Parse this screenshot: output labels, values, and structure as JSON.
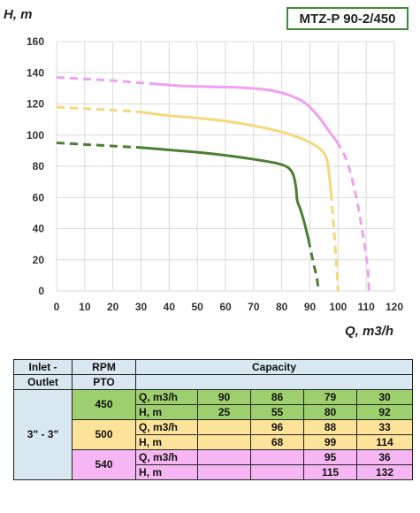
{
  "model": "MTZ-P 90-2/450",
  "chart_data": {
    "type": "line",
    "ylabel": "H, m",
    "xlabel": "Q, m3/h",
    "xlim": [
      0,
      120
    ],
    "ylim": [
      0,
      160
    ],
    "xticks": [
      "0",
      "10",
      "20",
      "30",
      "40",
      "50",
      "60",
      "70",
      "80",
      "90",
      "100",
      "110",
      "120"
    ],
    "yticks": [
      "0",
      "20",
      "40",
      "60",
      "80",
      "100",
      "120",
      "140",
      "160"
    ],
    "grid": true,
    "series": [
      {
        "rpm": "450",
        "color": "#4a7f34",
        "dashed_start": [
          [
            0,
            95
          ],
          [
            10,
            94
          ],
          [
            20,
            93
          ],
          [
            30,
            92
          ]
        ],
        "solid": [
          [
            30,
            92
          ],
          [
            40,
            90.5
          ],
          [
            50,
            89
          ],
          [
            60,
            87
          ],
          [
            70,
            84.5
          ],
          [
            78,
            82
          ],
          [
            82,
            79.5
          ],
          [
            84,
            75
          ],
          [
            85,
            67
          ],
          [
            85.5,
            58
          ],
          [
            86.5,
            53
          ],
          [
            88,
            44
          ],
          [
            89.5,
            33
          ]
        ],
        "dashed_end": [
          [
            89.5,
            33
          ],
          [
            91,
            20
          ],
          [
            92.5,
            8
          ],
          [
            93,
            0
          ]
        ]
      },
      {
        "rpm": "500",
        "color": "#f6d77a",
        "dashed_start": [
          [
            0,
            118
          ],
          [
            10,
            117
          ],
          [
            20,
            116
          ],
          [
            29,
            115
          ]
        ],
        "solid": [
          [
            29,
            115
          ],
          [
            40,
            112.5
          ],
          [
            50,
            111
          ],
          [
            60,
            109
          ],
          [
            70,
            106
          ],
          [
            80,
            102
          ],
          [
            88,
            97
          ],
          [
            93,
            92
          ],
          [
            95.5,
            87
          ],
          [
            96.5,
            80
          ],
          [
            97,
            72
          ],
          [
            97.5,
            63
          ]
        ],
        "dashed_end": [
          [
            97.5,
            63
          ],
          [
            98.5,
            40
          ],
          [
            99.5,
            15
          ],
          [
            100,
            0
          ]
        ]
      },
      {
        "rpm": "540",
        "color": "#f0a0ef",
        "dashed_start": [
          [
            0,
            137
          ],
          [
            10,
            136
          ],
          [
            20,
            135
          ],
          [
            30,
            133.5
          ],
          [
            34,
            133
          ]
        ],
        "solid": [
          [
            34,
            133
          ],
          [
            45,
            131.5
          ],
          [
            55,
            131
          ],
          [
            65,
            130.5
          ],
          [
            75,
            129
          ],
          [
            82,
            126
          ],
          [
            88,
            121
          ],
          [
            93,
            112
          ],
          [
            97,
            102
          ],
          [
            99.5,
            96
          ]
        ],
        "dashed_end": [
          [
            99.5,
            96
          ],
          [
            103,
            84
          ],
          [
            106,
            64
          ],
          [
            108.5,
            40
          ],
          [
            110.5,
            15
          ],
          [
            111,
            0
          ]
        ]
      }
    ]
  },
  "table": {
    "col1_header": [
      "Inlet -",
      "Outlet"
    ],
    "col2_header": [
      "RPM",
      "PTO"
    ],
    "capacity_header": "Capacity",
    "inlet_outlet": "3\" - 3\"",
    "rows": [
      {
        "rpm": "450",
        "color": "g",
        "q_label": "Q, m3/h",
        "h_label": "H, m",
        "q": [
          "90",
          "86",
          "79",
          "30"
        ],
        "h": [
          "25",
          "55",
          "80",
          "92"
        ]
      },
      {
        "rpm": "500",
        "color": "y",
        "q_label": "Q, m3/h",
        "h_label": "H, m",
        "q": [
          "",
          "96",
          "88",
          "33"
        ],
        "h": [
          "",
          "68",
          "99",
          "114"
        ]
      },
      {
        "rpm": "540",
        "color": "p",
        "q_label": "Q, m3/h",
        "h_label": "H, m",
        "q": [
          "",
          "",
          "95",
          "36"
        ],
        "h": [
          "",
          "",
          "115",
          "132"
        ]
      }
    ]
  }
}
